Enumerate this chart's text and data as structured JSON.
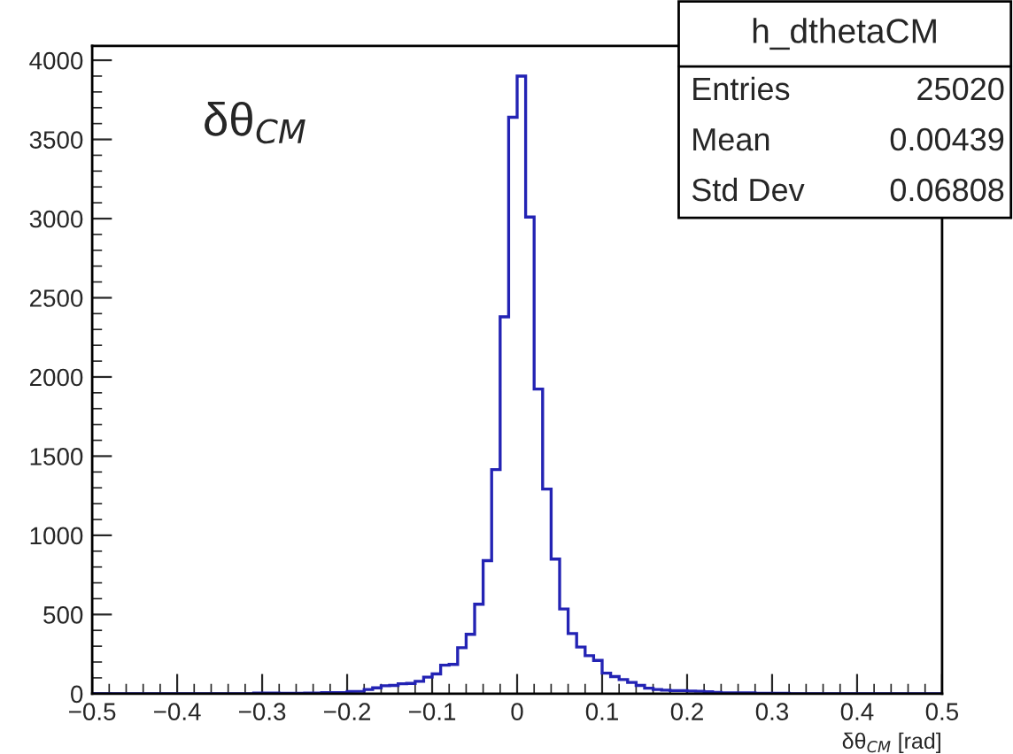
{
  "chart_data": {
    "type": "histogram",
    "title": "δθ$_{CM}$",
    "xlabel": "δθ$_{CM}$ [rad]",
    "bins": [
      -0.5,
      -0.49,
      -0.48,
      -0.47,
      -0.46,
      -0.45,
      -0.44,
      -0.43,
      -0.42,
      -0.41,
      -0.4,
      -0.39,
      -0.38,
      -0.37,
      -0.36,
      -0.35,
      -0.34,
      -0.33,
      -0.32,
      -0.31,
      -0.3,
      -0.29,
      -0.28,
      -0.27,
      -0.26,
      -0.25,
      -0.24,
      -0.23,
      -0.22,
      -0.21,
      -0.2,
      -0.19,
      -0.18,
      -0.17,
      -0.16,
      -0.15,
      -0.14,
      -0.13,
      -0.12,
      -0.11,
      -0.1,
      -0.09,
      -0.08,
      -0.07,
      -0.06,
      -0.05,
      -0.04,
      -0.03,
      -0.02,
      -0.01,
      0,
      0.01,
      0.02,
      0.03,
      0.04,
      0.05,
      0.06,
      0.07,
      0.08,
      0.09,
      0.1,
      0.11,
      0.12,
      0.13,
      0.14,
      0.15,
      0.16,
      0.17,
      0.18,
      0.19,
      0.2,
      0.21,
      0.22,
      0.23,
      0.24,
      0.25,
      0.26,
      0.27,
      0.28,
      0.29,
      0.3,
      0.31,
      0.32,
      0.33,
      0.34,
      0.35,
      0.36,
      0.37,
      0.38,
      0.39,
      0.4,
      0.41,
      0.42,
      0.43,
      0.44,
      0.45,
      0.46,
      0.47,
      0.48,
      0.49,
      0.5
    ],
    "values": [
      0,
      0,
      0,
      0,
      0,
      0,
      0,
      0,
      0,
      0,
      0,
      0,
      0,
      0,
      0,
      0,
      0,
      0,
      0,
      4,
      4,
      4,
      2,
      2,
      3,
      4,
      5,
      6,
      6,
      7,
      14,
      15,
      26,
      37,
      50,
      52,
      63,
      65,
      78,
      105,
      125,
      180,
      185,
      290,
      375,
      565,
      840,
      1415,
      2380,
      3640,
      3900,
      3010,
      1924,
      1292,
      850,
      535,
      380,
      295,
      240,
      210,
      130,
      108,
      89,
      71,
      52,
      35,
      26,
      22,
      19,
      19,
      17,
      15,
      12,
      8,
      6,
      6,
      5,
      5,
      4,
      4,
      3,
      3,
      0,
      0,
      0,
      0,
      0,
      0,
      0,
      0,
      0,
      0,
      0,
      0,
      0,
      0,
      0,
      0,
      0,
      0
    ],
    "color": "#2323b4",
    "xlim": [
      -0.5,
      0.5
    ],
    "ylim": [
      0,
      4090
    ],
    "xticks": [
      {
        "value": -0.5,
        "label": "−0.5"
      },
      {
        "value": -0.4,
        "label": "−0.4"
      },
      {
        "value": -0.3,
        "label": "−0.3"
      },
      {
        "value": -0.2,
        "label": "−0.2"
      },
      {
        "value": -0.1,
        "label": "−0.1"
      },
      0,
      0.1,
      0.2,
      0.3,
      0.4,
      0.5
    ],
    "yticks": [
      0,
      500,
      1000,
      1500,
      2000,
      2500,
      3000,
      3500,
      4000
    ],
    "grid": false,
    "legend": false,
    "annotations": [
      "h_dthetaCM",
      "Entries",
      "25020",
      "Mean",
      "0.00439",
      "Std Dev",
      "0.06808"
    ]
  }
}
